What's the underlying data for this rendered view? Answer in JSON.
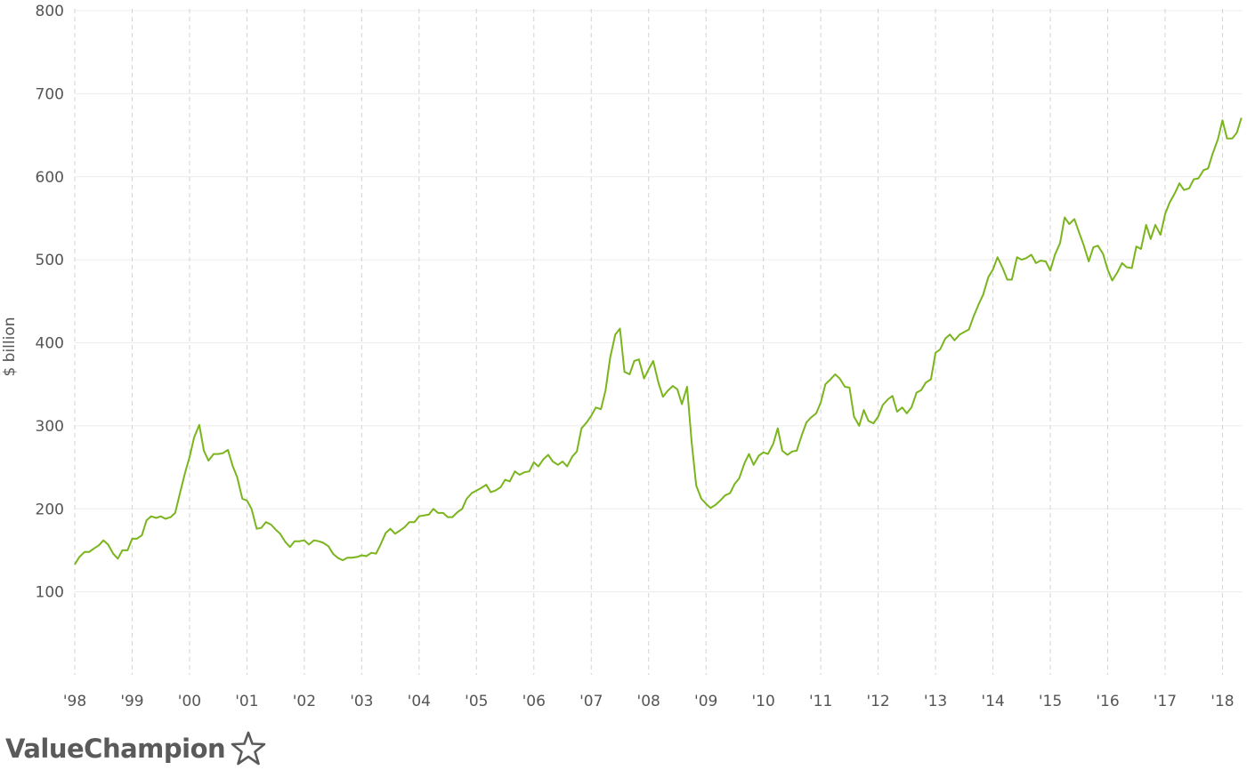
{
  "chart_data": {
    "type": "line",
    "ylabel": "$ billion",
    "ylim": [
      0,
      800
    ],
    "yticks": [
      100,
      200,
      300,
      400,
      500,
      600,
      700,
      800
    ],
    "xlim": [
      1998.0,
      2018.35
    ],
    "xticks": [
      {
        "year": 1998,
        "label": "'98"
      },
      {
        "year": 1999,
        "label": "'99"
      },
      {
        "year": 2000,
        "label": "'00"
      },
      {
        "year": 2001,
        "label": "'01"
      },
      {
        "year": 2002,
        "label": "'02"
      },
      {
        "year": 2003,
        "label": "'03"
      },
      {
        "year": 2004,
        "label": "'04"
      },
      {
        "year": 2005,
        "label": "'05"
      },
      {
        "year": 2006,
        "label": "'06"
      },
      {
        "year": 2007,
        "label": "'07"
      },
      {
        "year": 2008,
        "label": "'08"
      },
      {
        "year": 2009,
        "label": "'09"
      },
      {
        "year": 2010,
        "label": "'10"
      },
      {
        "year": 2011,
        "label": "'11"
      },
      {
        "year": 2012,
        "label": "'12"
      },
      {
        "year": 2013,
        "label": "'13"
      },
      {
        "year": 2014,
        "label": "'14"
      },
      {
        "year": 2015,
        "label": "'15"
      },
      {
        "year": 2016,
        "label": "'16"
      },
      {
        "year": 2017,
        "label": "'17"
      },
      {
        "year": 2018,
        "label": "'18"
      }
    ],
    "grid": {
      "horizontal": true,
      "vertical": "dashed"
    },
    "series": [
      {
        "color": "#7ab51d",
        "points": [
          [
            1998.0,
            133
          ],
          [
            1998.08,
            142
          ],
          [
            1998.17,
            148
          ],
          [
            1998.25,
            148
          ],
          [
            1998.33,
            152
          ],
          [
            1998.42,
            156
          ],
          [
            1998.5,
            162
          ],
          [
            1998.58,
            157
          ],
          [
            1998.67,
            146
          ],
          [
            1998.75,
            140
          ],
          [
            1998.83,
            150
          ],
          [
            1998.92,
            150
          ],
          [
            1999.0,
            164
          ],
          [
            1999.08,
            164
          ],
          [
            1999.17,
            168
          ],
          [
            1999.25,
            186
          ],
          [
            1999.33,
            191
          ],
          [
            1999.42,
            189
          ],
          [
            1999.5,
            191
          ],
          [
            1999.58,
            188
          ],
          [
            1999.67,
            190
          ],
          [
            1999.75,
            195
          ],
          [
            1999.83,
            218
          ],
          [
            1999.92,
            243
          ],
          [
            2000.0,
            262
          ],
          [
            2000.08,
            286
          ],
          [
            2000.17,
            301
          ],
          [
            2000.25,
            270
          ],
          [
            2000.33,
            258
          ],
          [
            2000.42,
            266
          ],
          [
            2000.5,
            266
          ],
          [
            2000.58,
            267
          ],
          [
            2000.67,
            271
          ],
          [
            2000.75,
            252
          ],
          [
            2000.83,
            238
          ],
          [
            2000.92,
            212
          ],
          [
            2001.0,
            210
          ],
          [
            2001.08,
            200
          ],
          [
            2001.17,
            176
          ],
          [
            2001.25,
            177
          ],
          [
            2001.33,
            184
          ],
          [
            2001.42,
            181
          ],
          [
            2001.5,
            175
          ],
          [
            2001.58,
            170
          ],
          [
            2001.67,
            160
          ],
          [
            2001.75,
            154
          ],
          [
            2001.83,
            161
          ],
          [
            2001.92,
            161
          ],
          [
            2002.0,
            162
          ],
          [
            2002.08,
            157
          ],
          [
            2002.17,
            162
          ],
          [
            2002.25,
            161
          ],
          [
            2002.33,
            159
          ],
          [
            2002.42,
            155
          ],
          [
            2002.5,
            146
          ],
          [
            2002.58,
            141
          ],
          [
            2002.67,
            138
          ],
          [
            2002.75,
            141
          ],
          [
            2002.83,
            141
          ],
          [
            2002.92,
            142
          ],
          [
            2003.0,
            144
          ],
          [
            2003.08,
            143
          ],
          [
            2003.17,
            147
          ],
          [
            2003.25,
            146
          ],
          [
            2003.33,
            157
          ],
          [
            2003.42,
            171
          ],
          [
            2003.5,
            176
          ],
          [
            2003.58,
            170
          ],
          [
            2003.67,
            174
          ],
          [
            2003.75,
            178
          ],
          [
            2003.83,
            184
          ],
          [
            2003.92,
            184
          ],
          [
            2004.0,
            191
          ],
          [
            2004.08,
            192
          ],
          [
            2004.17,
            193
          ],
          [
            2004.25,
            200
          ],
          [
            2004.33,
            195
          ],
          [
            2004.42,
            195
          ],
          [
            2004.5,
            190
          ],
          [
            2004.58,
            190
          ],
          [
            2004.67,
            196
          ],
          [
            2004.75,
            200
          ],
          [
            2004.83,
            212
          ],
          [
            2004.92,
            219
          ],
          [
            2005.0,
            222
          ],
          [
            2005.08,
            225
          ],
          [
            2005.17,
            229
          ],
          [
            2005.25,
            220
          ],
          [
            2005.33,
            222
          ],
          [
            2005.42,
            226
          ],
          [
            2005.5,
            235
          ],
          [
            2005.58,
            233
          ],
          [
            2005.67,
            245
          ],
          [
            2005.75,
            241
          ],
          [
            2005.83,
            244
          ],
          [
            2005.92,
            245
          ],
          [
            2006.0,
            256
          ],
          [
            2006.08,
            251
          ],
          [
            2006.17,
            260
          ],
          [
            2006.25,
            265
          ],
          [
            2006.33,
            257
          ],
          [
            2006.42,
            253
          ],
          [
            2006.5,
            257
          ],
          [
            2006.58,
            251
          ],
          [
            2006.67,
            263
          ],
          [
            2006.75,
            269
          ],
          [
            2006.83,
            297
          ],
          [
            2006.92,
            304
          ],
          [
            2007.0,
            312
          ],
          [
            2007.08,
            322
          ],
          [
            2007.17,
            320
          ],
          [
            2007.25,
            343
          ],
          [
            2007.33,
            382
          ],
          [
            2007.42,
            410
          ],
          [
            2007.5,
            417
          ],
          [
            2007.58,
            365
          ],
          [
            2007.67,
            362
          ],
          [
            2007.75,
            378
          ],
          [
            2007.83,
            380
          ],
          [
            2007.92,
            357
          ],
          [
            2008.0,
            368
          ],
          [
            2008.08,
            378
          ],
          [
            2008.17,
            352
          ],
          [
            2008.25,
            335
          ],
          [
            2008.33,
            342
          ],
          [
            2008.42,
            348
          ],
          [
            2008.5,
            344
          ],
          [
            2008.58,
            326
          ],
          [
            2008.67,
            347
          ],
          [
            2008.75,
            280
          ],
          [
            2008.83,
            228
          ],
          [
            2008.92,
            212
          ],
          [
            2009.0,
            206
          ],
          [
            2009.08,
            201
          ],
          [
            2009.17,
            205
          ],
          [
            2009.25,
            210
          ],
          [
            2009.33,
            216
          ],
          [
            2009.42,
            219
          ],
          [
            2009.5,
            230
          ],
          [
            2009.58,
            237
          ],
          [
            2009.67,
            255
          ],
          [
            2009.75,
            266
          ],
          [
            2009.83,
            253
          ],
          [
            2009.92,
            264
          ],
          [
            2010.0,
            268
          ],
          [
            2010.08,
            266
          ],
          [
            2010.17,
            278
          ],
          [
            2010.25,
            297
          ],
          [
            2010.33,
            270
          ],
          [
            2010.42,
            265
          ],
          [
            2010.5,
            269
          ],
          [
            2010.58,
            270
          ],
          [
            2010.67,
            289
          ],
          [
            2010.75,
            304
          ],
          [
            2010.83,
            310
          ],
          [
            2010.92,
            315
          ],
          [
            2011.0,
            328
          ],
          [
            2011.08,
            350
          ],
          [
            2011.17,
            356
          ],
          [
            2011.25,
            362
          ],
          [
            2011.33,
            357
          ],
          [
            2011.42,
            347
          ],
          [
            2011.5,
            346
          ],
          [
            2011.58,
            311
          ],
          [
            2011.67,
            300
          ],
          [
            2011.75,
            319
          ],
          [
            2011.83,
            306
          ],
          [
            2011.92,
            303
          ],
          [
            2012.0,
            311
          ],
          [
            2012.08,
            325
          ],
          [
            2012.17,
            332
          ],
          [
            2012.25,
            336
          ],
          [
            2012.33,
            317
          ],
          [
            2012.42,
            322
          ],
          [
            2012.5,
            315
          ],
          [
            2012.58,
            322
          ],
          [
            2012.67,
            340
          ],
          [
            2012.75,
            343
          ],
          [
            2012.83,
            352
          ],
          [
            2012.92,
            356
          ],
          [
            2013.0,
            388
          ],
          [
            2013.08,
            392
          ],
          [
            2013.17,
            405
          ],
          [
            2013.25,
            410
          ],
          [
            2013.33,
            403
          ],
          [
            2013.42,
            410
          ],
          [
            2013.5,
            413
          ],
          [
            2013.58,
            416
          ],
          [
            2013.67,
            433
          ],
          [
            2013.75,
            446
          ],
          [
            2013.83,
            458
          ],
          [
            2013.92,
            479
          ],
          [
            2014.0,
            488
          ],
          [
            2014.08,
            503
          ],
          [
            2014.17,
            490
          ],
          [
            2014.25,
            476
          ],
          [
            2014.33,
            476
          ],
          [
            2014.42,
            503
          ],
          [
            2014.5,
            500
          ],
          [
            2014.58,
            502
          ],
          [
            2014.67,
            506
          ],
          [
            2014.75,
            496
          ],
          [
            2014.83,
            499
          ],
          [
            2014.92,
            498
          ],
          [
            2015.0,
            487
          ],
          [
            2015.08,
            506
          ],
          [
            2015.17,
            520
          ],
          [
            2015.25,
            551
          ],
          [
            2015.33,
            543
          ],
          [
            2015.42,
            549
          ],
          [
            2015.5,
            533
          ],
          [
            2015.58,
            518
          ],
          [
            2015.67,
            498
          ],
          [
            2015.75,
            515
          ],
          [
            2015.83,
            517
          ],
          [
            2015.92,
            507
          ],
          [
            2016.0,
            488
          ],
          [
            2016.08,
            475
          ],
          [
            2016.17,
            485
          ],
          [
            2016.25,
            496
          ],
          [
            2016.33,
            491
          ],
          [
            2016.42,
            490
          ],
          [
            2016.5,
            516
          ],
          [
            2016.58,
            513
          ],
          [
            2016.67,
            542
          ],
          [
            2016.75,
            525
          ],
          [
            2016.83,
            542
          ],
          [
            2016.92,
            530
          ],
          [
            2017.0,
            555
          ],
          [
            2017.08,
            569
          ],
          [
            2017.17,
            580
          ],
          [
            2017.25,
            592
          ],
          [
            2017.33,
            584
          ],
          [
            2017.42,
            586
          ],
          [
            2017.5,
            597
          ],
          [
            2017.58,
            598
          ],
          [
            2017.67,
            608
          ],
          [
            2017.75,
            610
          ],
          [
            2017.83,
            628
          ],
          [
            2017.92,
            645
          ],
          [
            2018.0,
            668
          ],
          [
            2018.08,
            646
          ],
          [
            2018.17,
            646
          ],
          [
            2018.25,
            653
          ],
          [
            2018.33,
            671
          ]
        ]
      }
    ]
  },
  "brand": {
    "name": "ValueChampion"
  }
}
